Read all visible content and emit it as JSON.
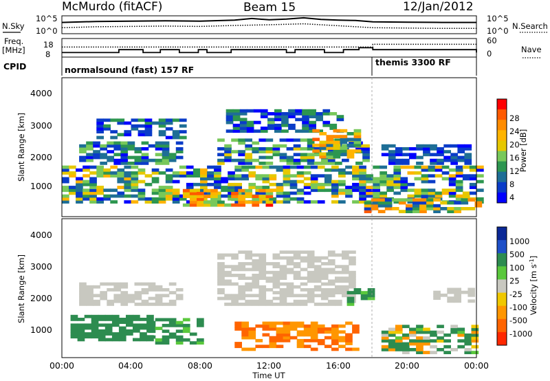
{
  "header": {
    "station": "McMurdo (fitACF)",
    "beam": "Beam 15",
    "date": "12/Jan/2012"
  },
  "noise_panel": {
    "left_label": "N.Sky",
    "right_label": "N.Search",
    "left_ticks": [
      "10^5",
      "10^0"
    ],
    "right_ticks": [
      "10^5",
      "10^0"
    ]
  },
  "freq_panel": {
    "left_label_1": "Freq.",
    "left_label_2": "[MHz]",
    "right_label": "Nave",
    "left_ticks": [
      "18",
      "8"
    ],
    "right_ticks": [
      "60",
      "0"
    ]
  },
  "cpid_panel": {
    "label": "CPID",
    "mode_1": "normalsound (fast) 157 RF",
    "mode_2": "themis 3300 RF"
  },
  "power_panel": {
    "ylabel": "Slant Range [km]",
    "yticks": [
      "4000",
      "3000",
      "2000",
      "1000"
    ],
    "colorbar_label": "Power [dB]",
    "colorbar_ticks": [
      "28",
      "24",
      "20",
      "16",
      "12",
      "8",
      "4"
    ],
    "colorbar_colors": [
      "#ff0000",
      "#ff5a00",
      "#ff8c00",
      "#ffb400",
      "#e6c800",
      "#78c85a",
      "#2d9650",
      "#1e6e96",
      "#0a3cc8",
      "#0000ff"
    ]
  },
  "velocity_panel": {
    "ylabel": "Slant Range [km]",
    "yticks": [
      "4000",
      "3000",
      "2000",
      "1000"
    ],
    "colorbar_label": "Velocity [m s",
    "colorbar_label_sup": "-1",
    "colorbar_label_end": "]",
    "colorbar_ticks": [
      "1000",
      "500",
      "100",
      "25",
      "-25",
      "-100",
      "-500",
      "-1000"
    ],
    "colorbar_colors": [
      "#0a2896",
      "#1e50c8",
      "#2d8c50",
      "#5ac83c",
      "#c8c8c0",
      "#f0c800",
      "#ff9600",
      "#ff6400",
      "#ff2800"
    ]
  },
  "xaxis": {
    "label": "Time UT",
    "ticks": [
      "00:00",
      "04:00",
      "08:00",
      "12:00",
      "16:00",
      "20:00",
      "00:00"
    ]
  },
  "chart_data": [
    {
      "type": "line",
      "name": "noise",
      "xlim": [
        0,
        24
      ],
      "series": [
        {
          "name": "N.Sky",
          "x": [
            0,
            2,
            4,
            6,
            8,
            10,
            11,
            12,
            13,
            14,
            15,
            16,
            17,
            18,
            20,
            22,
            24
          ],
          "y": [
            3.2,
            3.5,
            3.6,
            3.7,
            3.6,
            3.9,
            4.4,
            4.0,
            4.2,
            4.6,
            4.1,
            3.9,
            3.8,
            3.4,
            3.3,
            3.2,
            3.2
          ]
        },
        {
          "name": "N.Search",
          "x": [
            0,
            2,
            4,
            6,
            8,
            10,
            12,
            14,
            16,
            18,
            20,
            22,
            24
          ],
          "y": [
            1.6,
            1.9,
            2.0,
            2.1,
            2.0,
            2.3,
            2.5,
            2.8,
            2.2,
            1.6,
            1.5,
            1.4,
            1.4
          ]
        }
      ]
    },
    {
      "type": "line",
      "name": "frequency",
      "xlim": [
        0,
        24
      ],
      "series": [
        {
          "name": "Freq.",
          "x": [
            0,
            2.3,
            3.3,
            4.3,
            4.7,
            5.7,
            6.0,
            6.8,
            7.3,
            7.9,
            8.4,
            9.3,
            9.8,
            10.3,
            13.0,
            13.5,
            14.3,
            15.2,
            16.3,
            17.2,
            18.0,
            24.0
          ],
          "y": [
            12,
            12,
            15,
            15,
            12,
            15,
            15,
            12,
            12,
            15,
            12,
            12,
            15,
            15,
            12,
            15,
            15,
            12,
            15,
            17,
            15,
            12
          ]
        },
        {
          "name": "Nave",
          "x": [
            0,
            18,
            18,
            24
          ],
          "y": [
            34,
            34,
            44,
            44
          ]
        }
      ]
    },
    {
      "type": "heatmap",
      "name": "power",
      "title": "Power [dB]",
      "xlim": [
        0,
        24
      ],
      "ylim": [
        180,
        4500
      ],
      "zlim": [
        0,
        30
      ],
      "x_step_h": 0.4,
      "y_step_km": 90,
      "regions": [
        {
          "t0": 0.0,
          "t1": 24.0,
          "r0": 600,
          "r1": 1700,
          "z": [
            3,
            21
          ]
        },
        {
          "t0": 1.0,
          "t1": 6.7,
          "r0": 1800,
          "r1": 2500,
          "z": [
            3,
            16
          ]
        },
        {
          "t0": 2.0,
          "t1": 7.0,
          "r0": 2600,
          "r1": 3200,
          "z": [
            3,
            12
          ]
        },
        {
          "t0": 9.0,
          "t1": 17.5,
          "r0": 1800,
          "r1": 2600,
          "z": [
            3,
            18
          ]
        },
        {
          "t0": 9.5,
          "t1": 16.0,
          "r0": 2800,
          "r1": 3500,
          "z": [
            3,
            14
          ]
        },
        {
          "t0": 14.5,
          "t1": 17.2,
          "r0": 2000,
          "r1": 2900,
          "z": [
            8,
            26
          ]
        },
        {
          "t0": 18.5,
          "t1": 23.5,
          "r0": 1800,
          "r1": 2400,
          "z": [
            3,
            10
          ]
        },
        {
          "t0": 7.0,
          "t1": 12.0,
          "r0": 500,
          "r1": 1000,
          "z": [
            12,
            29
          ]
        },
        {
          "t0": 17.5,
          "t1": 24.0,
          "r0": 300,
          "r1": 700,
          "z": [
            6,
            26
          ]
        }
      ]
    },
    {
      "type": "heatmap",
      "name": "velocity",
      "title": "Velocity [m s-1]",
      "xlim": [
        0,
        24
      ],
      "ylim": [
        180,
        4500
      ],
      "zlim": [
        -1000,
        1000
      ],
      "x_step_h": 0.4,
      "y_step_km": 90,
      "regions": [
        {
          "t0": 0.5,
          "t1": 5.0,
          "r0": 700,
          "r1": 1500,
          "v": [
            60,
            300
          ]
        },
        {
          "t0": 1.0,
          "t1": 6.7,
          "r0": 1800,
          "r1": 2500,
          "v": [
            -25,
            25
          ]
        },
        {
          "t0": 5.0,
          "t1": 8.0,
          "r0": 600,
          "r1": 1400,
          "v": [
            30,
            200
          ]
        },
        {
          "t0": 9.0,
          "t1": 17.0,
          "r0": 1800,
          "r1": 3500,
          "v": [
            -25,
            25
          ]
        },
        {
          "t0": 10.0,
          "t1": 17.0,
          "r0": 400,
          "r1": 1300,
          "v": [
            -500,
            -80
          ]
        },
        {
          "t0": 16.5,
          "t1": 18.0,
          "r0": 1800,
          "r1": 2300,
          "v": [
            40,
            200
          ]
        },
        {
          "t0": 18.5,
          "t1": 24.0,
          "r0": 300,
          "r1": 1200,
          "v": [
            -150,
            300
          ]
        },
        {
          "t0": 21.5,
          "t1": 23.5,
          "r0": 1900,
          "r1": 2300,
          "v": [
            -25,
            25
          ]
        }
      ]
    }
  ]
}
